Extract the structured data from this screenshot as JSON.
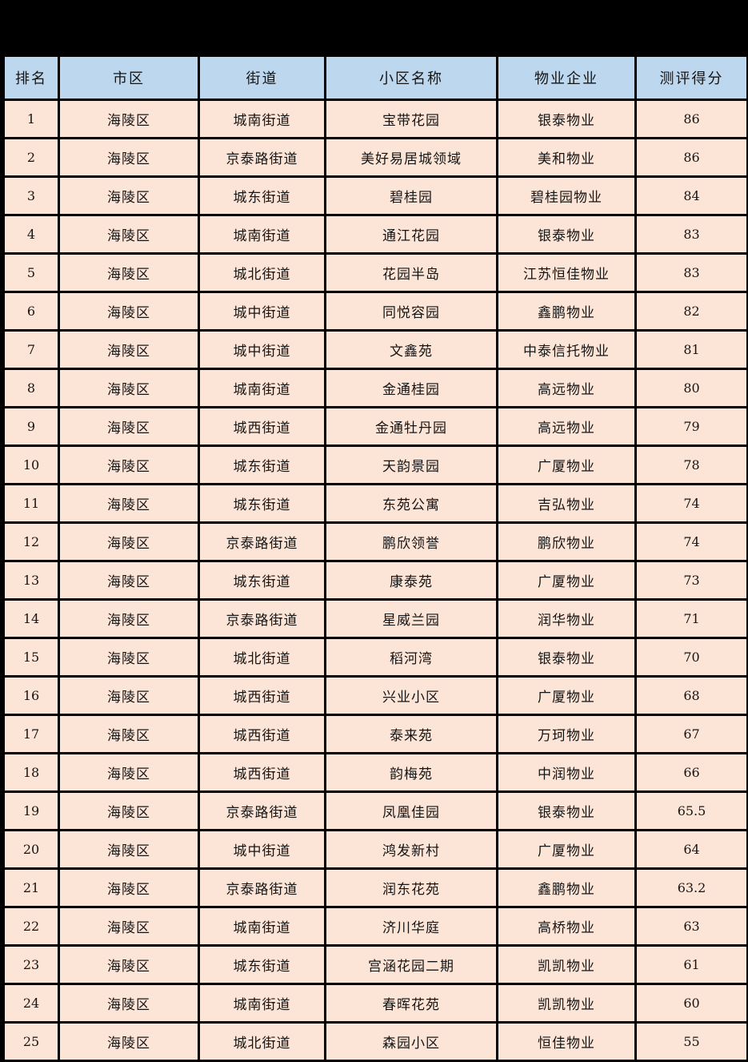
{
  "page": {
    "background": "#000000"
  },
  "table": {
    "colors": {
      "header_bg": "#BDD7EE",
      "row_bg": "#FCE4D6",
      "border": "#000000"
    },
    "headers": [
      "排名",
      "市区",
      "街道",
      "小区名称",
      "物业企业",
      "测评得分"
    ],
    "rows": [
      [
        "1",
        "海陵区",
        "城南街道",
        "宝带花园",
        "银泰物业",
        "86"
      ],
      [
        "2",
        "海陵区",
        "京泰路街道",
        "美好易居城领域",
        "美和物业",
        "86"
      ],
      [
        "3",
        "海陵区",
        "城东街道",
        "碧桂园",
        "碧桂园物业",
        "84"
      ],
      [
        "4",
        "海陵区",
        "城南街道",
        "通江花园",
        "银泰物业",
        "83"
      ],
      [
        "5",
        "海陵区",
        "城北街道",
        "花园半岛",
        "江苏恒佳物业",
        "83"
      ],
      [
        "6",
        "海陵区",
        "城中街道",
        "同悦容园",
        "鑫鹏物业",
        "82"
      ],
      [
        "7",
        "海陵区",
        "城中街道",
        "文鑫苑",
        "中泰信托物业",
        "81"
      ],
      [
        "8",
        "海陵区",
        "城南街道",
        "金通桂园",
        "高远物业",
        "80"
      ],
      [
        "9",
        "海陵区",
        "城西街道",
        "金通牡丹园",
        "高远物业",
        "79"
      ],
      [
        "10",
        "海陵区",
        "城东街道",
        "天韵景园",
        "广厦物业",
        "78"
      ],
      [
        "11",
        "海陵区",
        "城东街道",
        "东苑公寓",
        "吉弘物业",
        "74"
      ],
      [
        "12",
        "海陵区",
        "京泰路街道",
        "鹏欣领誉",
        "鹏欣物业",
        "74"
      ],
      [
        "13",
        "海陵区",
        "城东街道",
        "康泰苑",
        "广厦物业",
        "73"
      ],
      [
        "14",
        "海陵区",
        "京泰路街道",
        "星威兰园",
        "润华物业",
        "71"
      ],
      [
        "15",
        "海陵区",
        "城北街道",
        "稻河湾",
        "银泰物业",
        "70"
      ],
      [
        "16",
        "海陵区",
        "城西街道",
        "兴业小区",
        "广厦物业",
        "68"
      ],
      [
        "17",
        "海陵区",
        "城西街道",
        "泰来苑",
        "万珂物业",
        "67"
      ],
      [
        "18",
        "海陵区",
        "城西街道",
        "韵梅苑",
        "中润物业",
        "66"
      ],
      [
        "19",
        "海陵区",
        "京泰路街道",
        "凤凰佳园",
        "银泰物业",
        "65.5"
      ],
      [
        "20",
        "海陵区",
        "城中街道",
        "鸿发新村",
        "广厦物业",
        "64"
      ],
      [
        "21",
        "海陵区",
        "京泰路街道",
        "润东花苑",
        "鑫鹏物业",
        "63.2"
      ],
      [
        "22",
        "海陵区",
        "城南街道",
        "济川华庭",
        "高桥物业",
        "63"
      ],
      [
        "23",
        "海陵区",
        "城东街道",
        "宫涵花园二期",
        "凯凯物业",
        "61"
      ],
      [
        "24",
        "海陵区",
        "城南街道",
        "春晖花苑",
        "凯凯物业",
        "60"
      ],
      [
        "25",
        "海陵区",
        "城北街道",
        "森园小区",
        "恒佳物业",
        "55"
      ]
    ]
  }
}
